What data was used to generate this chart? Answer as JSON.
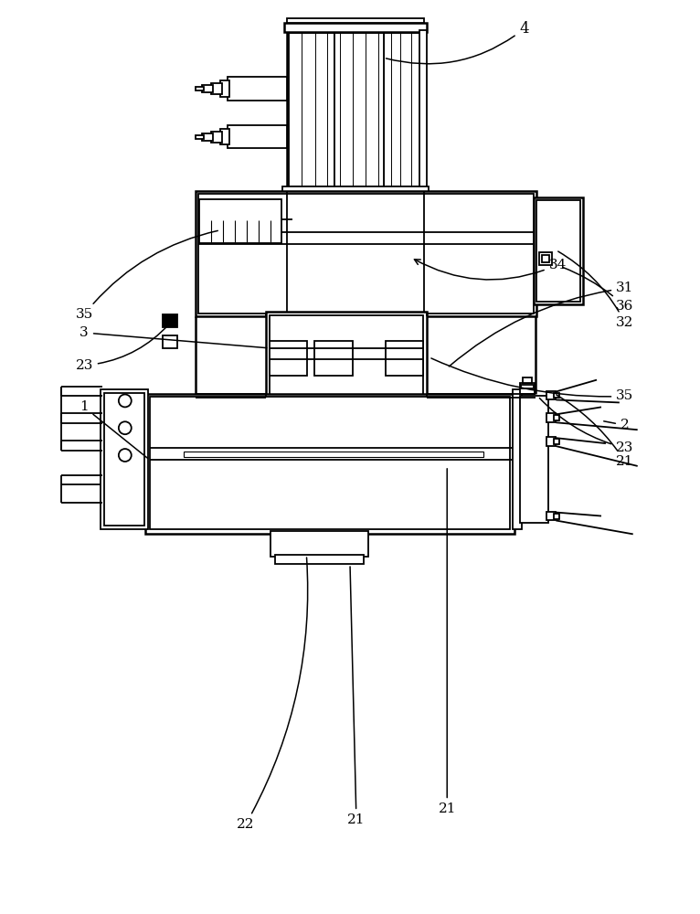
{
  "bg_color": "#ffffff",
  "lc": "#000000",
  "lw": 1.3,
  "tlw": 1.8
}
